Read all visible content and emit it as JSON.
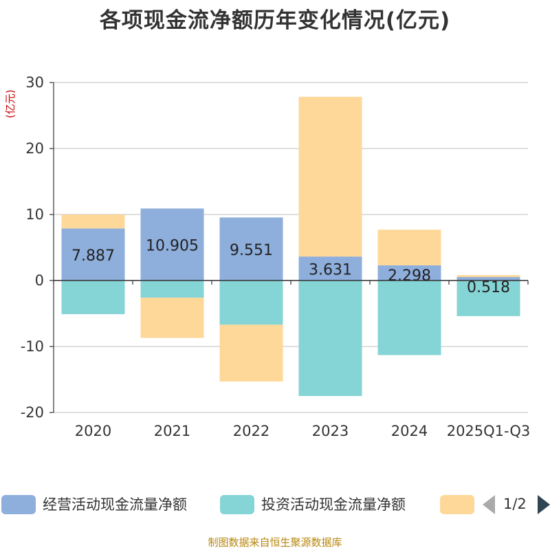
{
  "chart_data": {
    "type": "bar",
    "stacked": true,
    "title": "各项现金流净额历年变化情况(亿元)",
    "unit_label": "(亿元)",
    "categories": [
      "2020",
      "2021",
      "2022",
      "2023",
      "2024",
      "2025Q1-Q3"
    ],
    "ylim": [
      -20,
      30
    ],
    "yticks": [
      -20,
      -10,
      0,
      10,
      20,
      30
    ],
    "grid": true,
    "series": [
      {
        "name": "经营活动现金流量净额",
        "color": "#8eaedc",
        "values": [
          7.887,
          10.905,
          9.551,
          3.631,
          2.298,
          0.518
        ],
        "labels": [
          "7.887",
          "10.905",
          "9.551",
          "3.631",
          "2.298",
          "0.518"
        ]
      },
      {
        "name": "投资活动现金流量净额",
        "color": "#85d4d6",
        "values": [
          -5.1,
          -2.6,
          -6.7,
          -17.5,
          -11.3,
          -5.4
        ]
      },
      {
        "name": "",
        "color": "#fed898",
        "values": [
          2.1,
          -6.1,
          -8.6,
          24.2,
          5.4,
          0.3
        ]
      }
    ],
    "legend": {
      "position": "bottom",
      "page": "1/2"
    }
  },
  "source": "制图数据来自恒生聚源数据库"
}
